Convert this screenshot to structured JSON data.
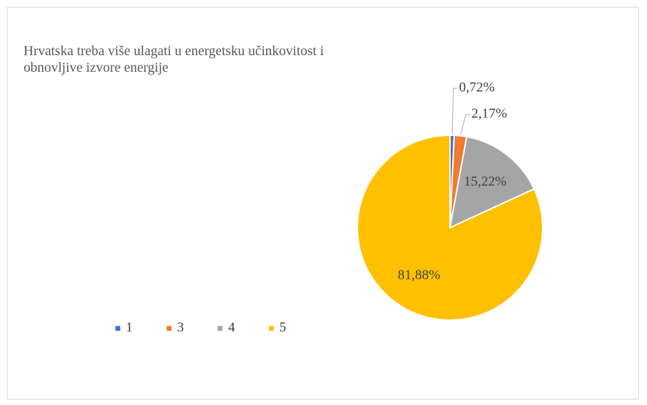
{
  "chart_data": {
    "type": "pie",
    "title": "Hrvatska treba više ulagati u energetsku učinkovitost i obnovljive izvore energije",
    "categories": [
      "1",
      "3",
      "4",
      "5"
    ],
    "values": [
      0.72,
      2.17,
      15.22,
      81.88
    ],
    "value_labels": [
      "0,72%",
      "2,17%",
      "15,22%",
      "81,88%"
    ],
    "colors": [
      "#4472c4",
      "#ed7d31",
      "#a5a5a5",
      "#ffc000"
    ],
    "legend": "bottom-left"
  }
}
